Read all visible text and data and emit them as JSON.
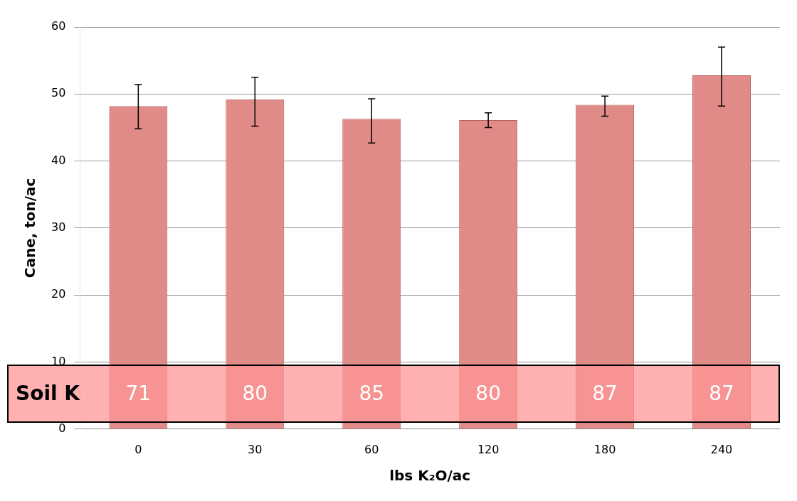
{
  "chart_data": {
    "type": "bar",
    "xlabel": "lbs K₂O/ac",
    "ylabel": "Cane, ton/ac",
    "categories": [
      "0",
      "30",
      "60",
      "120",
      "180",
      "240"
    ],
    "values": [
      48.2,
      49.2,
      46.3,
      46.1,
      48.4,
      52.8
    ],
    "errors": [
      [
        44.8,
        51.4
      ],
      [
        45.2,
        52.5
      ],
      [
        42.7,
        49.3
      ],
      [
        45.0,
        47.2
      ],
      [
        46.7,
        49.7
      ],
      [
        48.2,
        57.0
      ]
    ],
    "color": "#e08b88",
    "ylim": [
      0,
      60
    ],
    "yticks": [
      0,
      10,
      20,
      30,
      40,
      50,
      60
    ],
    "grid": "y",
    "legend": false,
    "annotations": [
      "Soil K",
      "71",
      "80",
      "85",
      "80",
      "87",
      "87"
    ]
  }
}
